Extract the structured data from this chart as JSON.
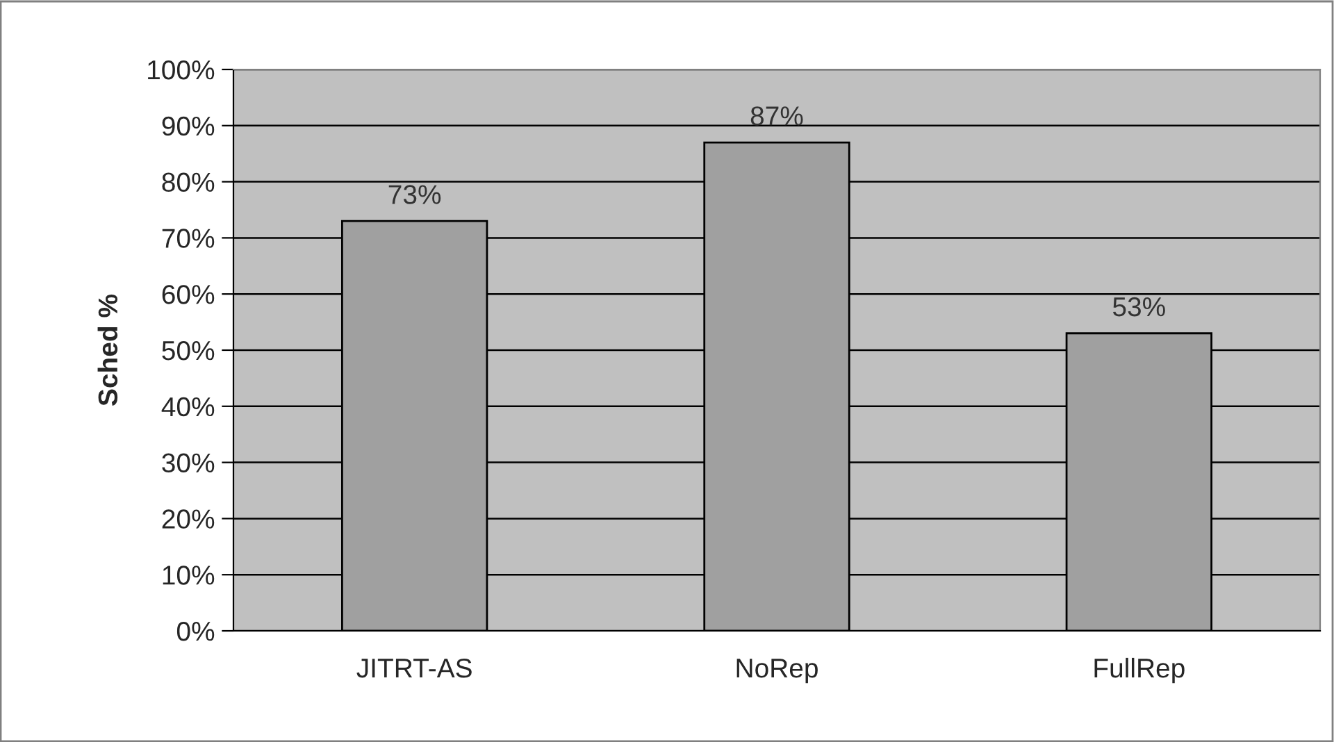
{
  "chart_data": {
    "type": "bar",
    "ylabel": "Sched %",
    "categories": [
      "JITRT-AS",
      "NoRep",
      "FullRep"
    ],
    "values": [
      73,
      87,
      53
    ],
    "value_labels": [
      "73%",
      "87%",
      "53%"
    ],
    "color": "#a0a0a0",
    "ylim": [
      0,
      100
    ],
    "yticks": [
      {
        "value": 0,
        "label": "0%"
      },
      {
        "value": 10,
        "label": "10%"
      },
      {
        "value": 20,
        "label": "20%"
      },
      {
        "value": 30,
        "label": "30%"
      },
      {
        "value": 40,
        "label": "40%"
      },
      {
        "value": 50,
        "label": "50%"
      },
      {
        "value": 60,
        "label": "60%"
      },
      {
        "value": 70,
        "label": "70%"
      },
      {
        "value": 80,
        "label": "80%"
      },
      {
        "value": 90,
        "label": "90%"
      },
      {
        "value": 100,
        "label": "100%"
      }
    ],
    "grid": "y",
    "legend": false
  }
}
